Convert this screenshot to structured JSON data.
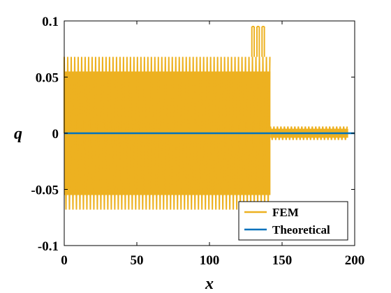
{
  "chart_data": {
    "type": "line",
    "xlabel": "x",
    "ylabel": "q",
    "xlim": [
      0,
      200
    ],
    "ylim": [
      -0.1,
      0.1
    ],
    "xticks": [
      0,
      50,
      100,
      150,
      200
    ],
    "xtick_labels": [
      "0",
      "50",
      "100",
      "150",
      "200"
    ],
    "yticks": [
      -0.1,
      -0.05,
      0,
      0.05,
      0.1
    ],
    "ytick_labels": [
      "-0.1",
      "-0.05",
      "0",
      "0.05",
      "0.1"
    ],
    "grid": false,
    "legend_position": "bottom-right",
    "series": [
      {
        "name": "FEM",
        "color": "#EDB120",
        "style": "dense oscillation",
        "segments": [
          {
            "x_range": [
              0,
              142
            ],
            "amplitude_envelope": 0.068,
            "body_amplitude": 0.055,
            "period": 2.4
          },
          {
            "x_range": [
              129,
              137
            ],
            "spike_peaks": [
              {
                "x": 130,
                "y": 0.095
              },
              {
                "x": 133.5,
                "y": 0.095
              },
              {
                "x": 137,
                "y": 0.095
              }
            ]
          },
          {
            "x_range": [
              142,
              195.5
            ],
            "amplitude_envelope": 0.006,
            "body_amplitude": 0.004,
            "period": 2.4
          },
          {
            "x_range": [
              195.5,
              200
            ],
            "value": 0
          }
        ]
      },
      {
        "name": "Theoretical",
        "color": "#0072BD",
        "style": "line",
        "x": [
          0,
          200
        ],
        "y": [
          0,
          0
        ]
      }
    ]
  }
}
